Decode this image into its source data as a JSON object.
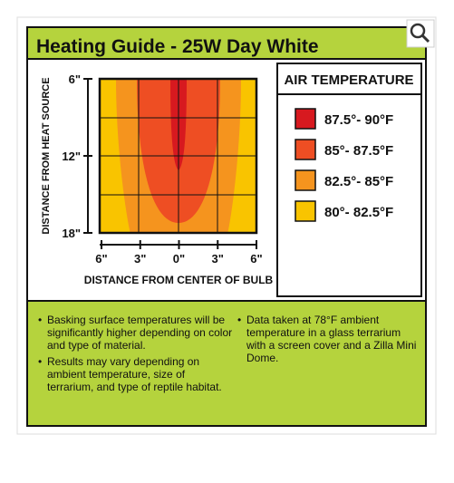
{
  "header": {
    "title": "Heating Guide - 25W Day White"
  },
  "chart": {
    "y_axis_label": "DISTANCE FROM HEAT SOURCE",
    "y_ticks": [
      "6\"",
      "12\"",
      "18\""
    ],
    "x_axis_label": "DISTANCE FROM CENTER OF BULB",
    "x_ticks": [
      "6\"",
      "3\"",
      "0\"",
      "3\"",
      "6\""
    ]
  },
  "legend": {
    "title": "AIR TEMPERATURE",
    "items": [
      {
        "label": "87.5°- 90°F",
        "color": "#d7191f"
      },
      {
        "label": "85°- 87.5°F",
        "color": "#ee4e23"
      },
      {
        "label": "82.5°- 85°F",
        "color": "#f5941e"
      },
      {
        "label": "80°- 82.5°F",
        "color": "#f9c400"
      }
    ]
  },
  "notes": {
    "left": [
      "Basking surface temperatures will be significantly higher depending on color and type of material.",
      "Results may vary depending on ambient temperature, size of terrarium, and type of reptile habitat."
    ],
    "right": [
      "Data taken at 78°F ambient temperature in a glass terrarium with a screen cover and a Zilla Mini Dome."
    ]
  }
}
